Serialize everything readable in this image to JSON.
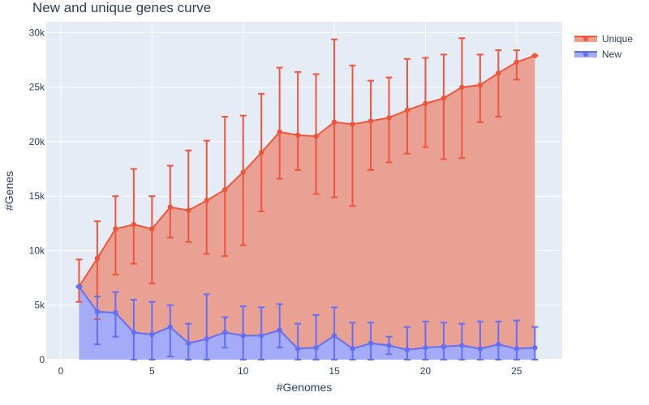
{
  "chart_data": {
    "type": "area",
    "title": "New and unique genes curve",
    "xlabel": "#Genomes",
    "ylabel": "#Genes",
    "xlim": [
      -0.8,
      27.5
    ],
    "ylim": [
      0,
      31000
    ],
    "x_ticks": [
      0,
      5,
      10,
      15,
      20,
      25
    ],
    "x_tick_labels": [
      "0",
      "5",
      "10",
      "15",
      "20",
      "25"
    ],
    "y_ticks": [
      0,
      5000,
      10000,
      15000,
      20000,
      25000,
      30000
    ],
    "y_tick_labels": [
      "0",
      "5k",
      "10k",
      "15k",
      "20k",
      "25k",
      "30k"
    ],
    "grid": true,
    "legend_position": "top-right",
    "x": [
      1,
      2,
      3,
      4,
      5,
      6,
      7,
      8,
      9,
      10,
      11,
      12,
      13,
      14,
      15,
      16,
      17,
      18,
      19,
      20,
      21,
      22,
      23,
      24,
      25,
      26
    ],
    "series": [
      {
        "name": "Unique",
        "color": "#ef553b",
        "fill": "#e9a193",
        "values": [
          6700,
          9300,
          12000,
          12400,
          12000,
          14000,
          13700,
          14600,
          15600,
          17200,
          19000,
          20900,
          20600,
          20500,
          21800,
          21600,
          21900,
          22200,
          22900,
          23500,
          24000,
          25000,
          25200,
          26300,
          27300,
          27900
        ],
        "error_low": [
          5300,
          3700,
          7800,
          8800,
          7000,
          11200,
          10800,
          9700,
          9500,
          10500,
          13600,
          16600,
          17400,
          15200,
          14900,
          14100,
          17400,
          18100,
          18900,
          19500,
          18400,
          18500,
          21800,
          22300,
          25700,
          27900
        ],
        "error_high": [
          9200,
          12700,
          15000,
          17500,
          15000,
          17800,
          19200,
          20100,
          22300,
          22400,
          24400,
          26800,
          26400,
          26200,
          29400,
          27000,
          25600,
          25900,
          27600,
          27700,
          28000,
          29500,
          28000,
          28400,
          28400,
          27900
        ]
      },
      {
        "name": "New",
        "color": "#636efa",
        "fill": "#a4acf7",
        "values": [
          6700,
          4400,
          4300,
          2500,
          2300,
          3000,
          1500,
          1900,
          2500,
          2200,
          2200,
          2700,
          1000,
          1100,
          2200,
          1000,
          1500,
          1300,
          900,
          1100,
          1200,
          1300,
          1000,
          1400,
          1000,
          1100
        ],
        "error_low": [
          6700,
          1400,
          2100,
          0,
          0,
          300,
          0,
          0,
          1100,
          0,
          0,
          1100,
          0,
          0,
          0,
          0,
          0,
          500,
          0,
          0,
          0,
          0,
          0,
          0,
          0,
          0
        ],
        "error_high": [
          6700,
          5800,
          6200,
          5500,
          5300,
          5000,
          3300,
          6000,
          3900,
          4900,
          4800,
          5100,
          3300,
          4100,
          4800,
          3400,
          3400,
          2100,
          3000,
          3500,
          3400,
          3300,
          3500,
          3500,
          3600,
          3000
        ]
      }
    ]
  }
}
